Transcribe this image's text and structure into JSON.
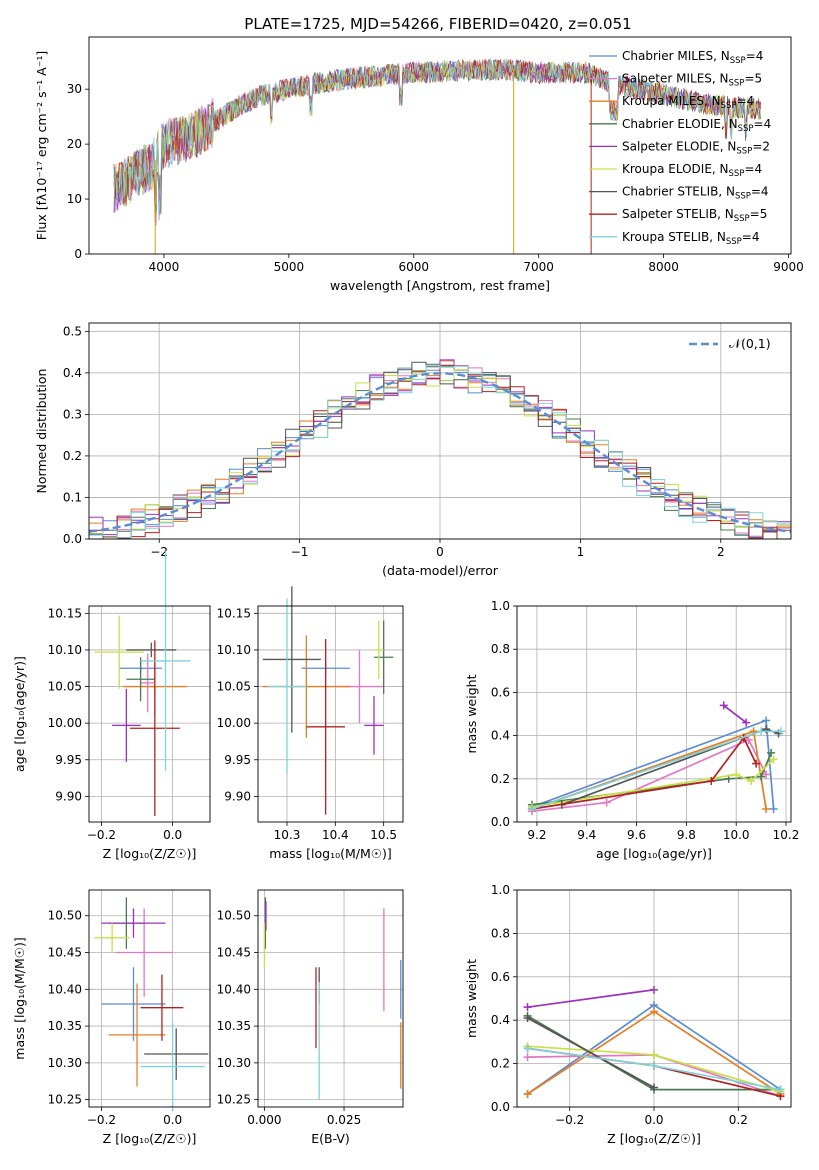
{
  "figure_title": "PLATE=1725, MJD=54266, FIBERID=0420, z=0.051",
  "series": [
    {
      "name": "Chabrier MILES",
      "nssp": "4",
      "color": "#5b8cd6"
    },
    {
      "name": "Salpeter MILES",
      "nssp": "5",
      "color": "#e377c2"
    },
    {
      "name": "Kroupa MILES",
      "nssp": "4",
      "color": "#e67e22"
    },
    {
      "name": "Chabrier ELODIE",
      "nssp": "4",
      "color": "#4a7a50"
    },
    {
      "name": "Salpeter ELODIE",
      "nssp": "2",
      "color": "#9b30c0"
    },
    {
      "name": "Kroupa ELODIE",
      "nssp": "4",
      "color": "#c8e04a"
    },
    {
      "name": "Chabrier STELIB",
      "nssp": "4",
      "color": "#555555"
    },
    {
      "name": "Salpeter STELIB",
      "nssp": "5",
      "color": "#b22222"
    },
    {
      "name": "Kroupa STELIB",
      "nssp": "4",
      "color": "#7fd3dd"
    }
  ],
  "chart_data": [
    {
      "id": "spectrum",
      "type": "line",
      "xlabel": "wavelength [Angstrom, rest frame]",
      "ylabel": "Flux [fλ10⁻¹⁷ erg cm⁻² s⁻¹ A⁻¹]",
      "xlim": [
        3400,
        9020
      ],
      "ylim": [
        0,
        39.5
      ],
      "xticks": [
        4000,
        5000,
        6000,
        7000,
        8000,
        9000
      ],
      "yticks": [
        0,
        10,
        20,
        30
      ],
      "continuum": [
        [
          3600,
          12
        ],
        [
          3700,
          13
        ],
        [
          3800,
          15
        ],
        [
          3900,
          16
        ],
        [
          4000,
          20
        ],
        [
          4200,
          21
        ],
        [
          4400,
          24
        ],
        [
          4600,
          27
        ],
        [
          4800,
          29
        ],
        [
          5000,
          30
        ],
        [
          5200,
          31
        ],
        [
          5500,
          32
        ],
        [
          6000,
          33
        ],
        [
          6500,
          33.5
        ],
        [
          6800,
          33.5
        ],
        [
          7000,
          33
        ],
        [
          7400,
          33
        ],
        [
          7600,
          31
        ],
        [
          7800,
          30
        ],
        [
          8000,
          29
        ],
        [
          8200,
          28
        ],
        [
          8400,
          27
        ],
        [
          8700,
          26.5
        ]
      ],
      "grid": false,
      "legend": "upper right"
    },
    {
      "id": "residuals",
      "type": "step",
      "xlabel": "(data-model)/error",
      "ylabel": "Normed distribution",
      "xlim": [
        -2.5,
        2.5
      ],
      "ylim": [
        0,
        0.52
      ],
      "xticks": [
        -2,
        -1,
        0,
        1,
        2
      ],
      "xtick_labels": [
        "−2",
        "−1",
        "0",
        "1",
        "2"
      ],
      "yticks": [
        0,
        0.1,
        0.2,
        0.3,
        0.4,
        0.5
      ],
      "ytick_labels": [
        "0.0",
        "0.1",
        "0.2",
        "0.3",
        "0.4",
        "0.5"
      ],
      "reference_label": "𝒩(0,1)",
      "grid": true,
      "legend": "upper right"
    },
    {
      "id": "age_vs_Z",
      "type": "errorbar",
      "xlabel": "Z [log₁₀(Z/Z☉)]",
      "ylabel": "age  [log₁₀(age/yr)]",
      "xlim": [
        -0.235,
        0.105
      ],
      "ylim": [
        9.865,
        10.16
      ],
      "xticks": [
        -0.2,
        0.0
      ],
      "xtick_labels": [
        "−0.2",
        "0.0"
      ],
      "yticks": [
        9.9,
        9.95,
        10.0,
        10.05,
        10.1,
        10.15
      ],
      "ytick_labels": [
        "9.90",
        "9.95",
        "10.00",
        "10.05",
        "10.10",
        "10.15"
      ],
      "points": [
        {
          "s": 0,
          "x": -0.09,
          "xerr": 0.06,
          "y": 10.075,
          "yerr": 0.01
        },
        {
          "s": 1,
          "x": -0.07,
          "xerr": 0.02,
          "y": 10.055,
          "yerr": 0.04
        },
        {
          "s": 2,
          "x": -0.05,
          "xerr": 0.09,
          "y": 10.05,
          "yerr": 0.04
        },
        {
          "s": 3,
          "x": -0.09,
          "xerr": 0.04,
          "y": 10.06,
          "yerr": 0.03
        },
        {
          "s": 4,
          "x": -0.13,
          "xerr": 0.04,
          "y": 9.997,
          "yerr": 0.05
        },
        {
          "s": 5,
          "x": -0.15,
          "xerr": 0.07,
          "y": 10.097,
          "yerr": 0.05
        },
        {
          "s": 6,
          "x": -0.06,
          "xerr": 0.07,
          "y": 10.1,
          "yerr": 0.01
        },
        {
          "s": 7,
          "x": -0.05,
          "xerr": 0.07,
          "y": 9.993,
          "yerr": 0.12
        },
        {
          "s": 8,
          "x": -0.02,
          "xerr": 0.07,
          "y": 10.085,
          "yerr": 0.15
        }
      ],
      "grid": true
    },
    {
      "id": "age_vs_mass",
      "type": "errorbar",
      "xlabel": "mass [log₁₀(M/M☉)]",
      "ylabel": "",
      "xlim": [
        10.24,
        10.54
      ],
      "ylim": [
        9.865,
        10.16
      ],
      "xticks": [
        10.3,
        10.4,
        10.5
      ],
      "xtick_labels": [
        "10.3",
        "10.4",
        "10.5"
      ],
      "yticks": [
        9.9,
        9.95,
        10.0,
        10.05,
        10.1,
        10.15
      ],
      "ytick_labels": [
        "9.90",
        "9.95",
        "10.00",
        "10.05",
        "10.10",
        "10.15"
      ],
      "points": [
        {
          "s": 0,
          "x": 10.38,
          "xerr": 0.05,
          "y": 10.075,
          "yerr": 0.01
        },
        {
          "s": 1,
          "x": 10.45,
          "xerr": 0.05,
          "y": 10.05,
          "yerr": 0.05
        },
        {
          "s": 2,
          "x": 10.34,
          "xerr": 0.09,
          "y": 10.05,
          "yerr": 0.07
        },
        {
          "s": 3,
          "x": 10.5,
          "xerr": 0.02,
          "y": 10.09,
          "yerr": 0.05
        },
        {
          "s": 4,
          "x": 10.48,
          "xerr": 0.02,
          "y": 9.997,
          "yerr": 0.04
        },
        {
          "s": 5,
          "x": 10.49,
          "xerr": 0.01,
          "y": 10.1,
          "yerr": 0.04
        },
        {
          "s": 6,
          "x": 10.31,
          "xerr": 0.06,
          "y": 10.087,
          "yerr": 0.1
        },
        {
          "s": 7,
          "x": 10.38,
          "xerr": 0.04,
          "y": 9.995,
          "yerr": 0.12
        },
        {
          "s": 8,
          "x": 10.3,
          "xerr": 0.04,
          "y": 10.05,
          "yerr": 0.12
        }
      ],
      "grid": true
    },
    {
      "id": "weight_vs_age",
      "type": "line",
      "xlabel": "age  [log₁₀(age/yr)]",
      "ylabel": "mass weight",
      "xlim": [
        9.12,
        10.22
      ],
      "ylim": [
        0,
        1
      ],
      "xticks": [
        9.2,
        9.4,
        9.6,
        9.8,
        10.0,
        10.2
      ],
      "xtick_labels": [
        "9.2",
        "9.4",
        "9.6",
        "9.8",
        "10.0",
        "10.2"
      ],
      "yticks": [
        0,
        0.2,
        0.4,
        0.6,
        0.8,
        1.0
      ],
      "ytick_labels": [
        "0.0",
        "0.2",
        "0.4",
        "0.6",
        "0.8",
        "1.0"
      ],
      "lines": [
        {
          "s": 0,
          "x": [
            9.18,
            10.12,
            10.15
          ],
          "y": [
            0.07,
            0.47,
            0.06
          ]
        },
        {
          "s": 1,
          "x": [
            9.18,
            9.48,
            10.05,
            10.12
          ],
          "y": [
            0.05,
            0.09,
            0.38,
            0.22
          ]
        },
        {
          "s": 2,
          "x": [
            9.18,
            10.07,
            10.12
          ],
          "y": [
            0.06,
            0.42,
            0.06
          ]
        },
        {
          "s": 3,
          "x": [
            9.18,
            9.97,
            10.1,
            10.14
          ],
          "y": [
            0.08,
            0.2,
            0.21,
            0.32
          ]
        },
        {
          "s": 4,
          "x": [
            9.95,
            10.04
          ],
          "y": [
            0.54,
            0.46
          ]
        },
        {
          "s": 5,
          "x": [
            9.18,
            10.0,
            10.06,
            10.15
          ],
          "y": [
            0.07,
            0.22,
            0.19,
            0.29
          ]
        },
        {
          "s": 6,
          "x": [
            9.3,
            10.12,
            10.17
          ],
          "y": [
            0.08,
            0.43,
            0.41
          ]
        },
        {
          "s": 7,
          "x": [
            9.18,
            9.9,
            10.03,
            10.08
          ],
          "y": [
            0.06,
            0.19,
            0.39,
            0.27
          ]
        },
        {
          "s": 8,
          "x": [
            9.18,
            10.1,
            10.18
          ],
          "y": [
            0.06,
            0.42,
            0.42
          ]
        }
      ],
      "grid": true
    },
    {
      "id": "mass_vs_Z",
      "type": "errorbar",
      "xlabel": "Z [log₁₀(Z/Z☉)]",
      "ylabel": "mass [log₁₀(M/M☉)]",
      "xlim": [
        -0.235,
        0.105
      ],
      "ylim": [
        10.24,
        10.535
      ],
      "xticks": [
        -0.2,
        0.0
      ],
      "xtick_labels": [
        "−0.2",
        "0.0"
      ],
      "yticks": [
        10.25,
        10.3,
        10.35,
        10.4,
        10.45,
        10.5
      ],
      "ytick_labels": [
        "10.25",
        "10.30",
        "10.35",
        "10.40",
        "10.45",
        "10.50"
      ],
      "points": [
        {
          "s": 0,
          "x": -0.11,
          "xerr": 0.09,
          "y": 10.38,
          "yerr": 0.05
        },
        {
          "s": 1,
          "x": -0.08,
          "xerr": 0.08,
          "y": 10.45,
          "yerr": 0.06
        },
        {
          "s": 2,
          "x": -0.1,
          "xerr": 0.08,
          "y": 10.338,
          "yerr": 0.07
        },
        {
          "s": 3,
          "x": -0.13,
          "xerr": 0.05,
          "y": 10.49,
          "yerr": 0.035
        },
        {
          "s": 4,
          "x": -0.11,
          "xerr": 0.09,
          "y": 10.49,
          "yerr": 0.02
        },
        {
          "s": 5,
          "x": -0.17,
          "xerr": 0.05,
          "y": 10.47,
          "yerr": 0.02
        },
        {
          "s": 6,
          "x": 0.01,
          "xerr": 0.09,
          "y": 10.312,
          "yerr": 0.035
        },
        {
          "s": 7,
          "x": -0.03,
          "xerr": 0.06,
          "y": 10.375,
          "yerr": 0.045
        },
        {
          "s": 8,
          "x": -0.0,
          "xerr": 0.09,
          "y": 10.295,
          "yerr": 0.06
        }
      ],
      "grid": true
    },
    {
      "id": "mass_vs_EBV",
      "type": "errorbar",
      "xlabel": "E(B-V)",
      "ylabel": "",
      "xlim": [
        -0.002,
        0.0435
      ],
      "ylim": [
        10.24,
        10.535
      ],
      "xticks": [
        0,
        0.025
      ],
      "xtick_labels": [
        "0.000",
        "0.025"
      ],
      "yticks": [
        10.25,
        10.3,
        10.35,
        10.4,
        10.45,
        10.5
      ],
      "ytick_labels": [
        "10.25",
        "10.30",
        "10.35",
        "10.40",
        "10.45",
        "10.50"
      ],
      "points": [
        {
          "s": 0,
          "x": 0.0428,
          "xerr": 0,
          "y": 10.4,
          "yerr": 0.04
        },
        {
          "s": 1,
          "x": 0.0375,
          "xerr": 0,
          "y": 10.44,
          "yerr": 0.07
        },
        {
          "s": 2,
          "x": 0.0428,
          "xerr": 0,
          "y": 10.31,
          "yerr": 0.045
        },
        {
          "s": 3,
          "x": 0.0003,
          "xerr": 0,
          "y": 10.49,
          "yerr": 0.035
        },
        {
          "s": 4,
          "x": 0.0005,
          "xerr": 0,
          "y": 10.5,
          "yerr": 0.02
        },
        {
          "s": 5,
          "x": 0.0,
          "xerr": 0,
          "y": 10.46,
          "yerr": 0.03
        },
        {
          "s": 6,
          "x": 0.0172,
          "xerr": 0,
          "y": 10.405,
          "yerr": 0.025
        },
        {
          "s": 7,
          "x": 0.0162,
          "xerr": 0,
          "y": 10.375,
          "yerr": 0.055
        },
        {
          "s": 8,
          "x": 0.0172,
          "xerr": 0,
          "y": 10.33,
          "yerr": 0.08
        }
      ],
      "grid": true
    },
    {
      "id": "weight_vs_Z",
      "type": "line",
      "xlabel": "Z [log₁₀(Z/Z☉)]",
      "ylabel": "mass weight",
      "xlim": [
        -0.325,
        0.325
      ],
      "ylim": [
        0,
        1
      ],
      "xticks": [
        -0.2,
        0.0,
        0.2
      ],
      "xtick_labels": [
        "−0.2",
        "0.0",
        "0.2"
      ],
      "yticks": [
        0,
        0.2,
        0.4,
        0.6,
        0.8,
        1.0
      ],
      "ytick_labels": [
        "0.0",
        "0.2",
        "0.4",
        "0.6",
        "0.8",
        "1.0"
      ],
      "lines": [
        {
          "s": 0,
          "x": [
            -0.3,
            0.0,
            0.3
          ],
          "y": [
            0.06,
            0.47,
            0.08
          ]
        },
        {
          "s": 1,
          "x": [
            -0.3,
            0.0,
            0.3
          ],
          "y": [
            0.23,
            0.24,
            0.05
          ]
        },
        {
          "s": 2,
          "x": [
            -0.3,
            0.0,
            0.3
          ],
          "y": [
            0.06,
            0.44,
            0.06
          ]
        },
        {
          "s": 3,
          "x": [
            -0.3,
            0.0,
            0.3
          ],
          "y": [
            0.42,
            0.08,
            0.08
          ]
        },
        {
          "s": 4,
          "x": [
            -0.3,
            0.0
          ],
          "y": [
            0.46,
            0.54
          ]
        },
        {
          "s": 5,
          "x": [
            -0.3,
            0.0,
            0.3
          ],
          "y": [
            0.28,
            0.24,
            0.07
          ]
        },
        {
          "s": 6,
          "x": [
            -0.3,
            0.0
          ],
          "y": [
            0.41,
            0.09
          ]
        },
        {
          "s": 7,
          "x": [
            -0.3,
            0.0,
            0.3
          ],
          "y": [
            0.27,
            0.19,
            0.05
          ]
        },
        {
          "s": 8,
          "x": [
            -0.3,
            0.0,
            0.3
          ],
          "y": [
            0.27,
            0.19,
            0.08
          ]
        }
      ],
      "grid": true
    }
  ]
}
